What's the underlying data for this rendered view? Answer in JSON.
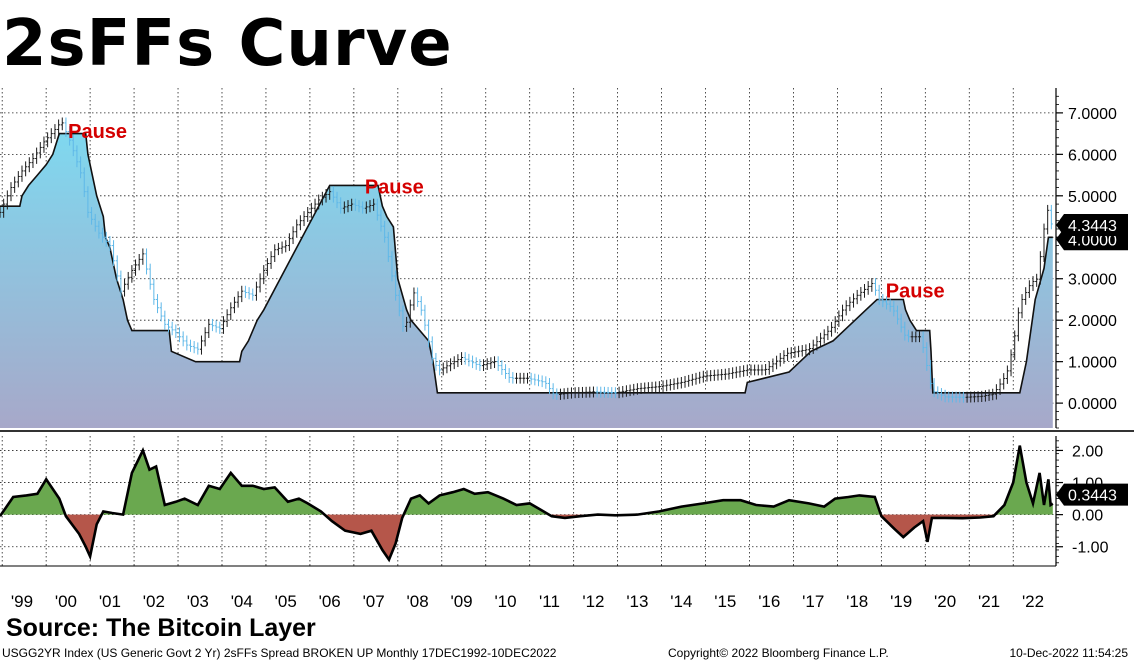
{
  "title": "2sFFs Curve",
  "source": "Source: The Bitcoin Layer",
  "footer": {
    "left": "USGG2YR Index (US Generic Govt 2 Yr) 2sFFs Spread BROKEN UP  Monthly 17DEC1992-10DEC2022",
    "center": "Copyright© 2022 Bloomberg Finance L.P.",
    "right": "10-Dec-2022 11:54:25"
  },
  "colors": {
    "area_top": "#7fd8ef",
    "area_bottom": "#a7a8c9",
    "positive_fill": "#6aa84f",
    "negative_fill": "#b5564a",
    "candle_dark": "#1a1a1a",
    "candle_light": "#5fb8e8",
    "annotation": "#d40000"
  },
  "chart_data": [
    {
      "type": "area",
      "series_description_printed": "none",
      "y_ticks": [
        "7.0000",
        "6.0000",
        "5.0000",
        "4.0000",
        "3.0000",
        "2.0000",
        "1.0000",
        "0.0000"
      ],
      "ylim": [
        -0.6,
        7.6
      ],
      "x_ticks": [
        "'99",
        "'00",
        "'01",
        "'02",
        "'03",
        "'04",
        "'05",
        "'06",
        "'07",
        "'08",
        "'09",
        "'10",
        "'11",
        "'12",
        "'13",
        "'14",
        "'15",
        "'16",
        "'17",
        "'18",
        "'19",
        "'20",
        "'21",
        "'22"
      ],
      "xlim": [
        1999.0,
        2023.0
      ],
      "last_value_labels": [
        "4.3443",
        "4.0000"
      ],
      "annotations": [
        {
          "text": "Pause",
          "x": 2000.55,
          "y": 6.4
        },
        {
          "text": "Pause",
          "x": 2007.3,
          "y": 5.05
        },
        {
          "text": "Pause",
          "x": 2019.15,
          "y": 2.55
        }
      ],
      "fed_funds": [
        [
          1999.0,
          4.75
        ],
        [
          1999.45,
          4.75
        ],
        [
          1999.5,
          5.0
        ],
        [
          1999.65,
          5.25
        ],
        [
          1999.85,
          5.5
        ],
        [
          2000.05,
          5.75
        ],
        [
          2000.2,
          6.0
        ],
        [
          2000.35,
          6.5
        ],
        [
          2000.95,
          6.5
        ],
        [
          2001.0,
          6.0
        ],
        [
          2001.1,
          5.5
        ],
        [
          2001.2,
          5.0
        ],
        [
          2001.35,
          4.5
        ],
        [
          2001.4,
          4.0
        ],
        [
          2001.5,
          3.75
        ],
        [
          2001.65,
          3.0
        ],
        [
          2001.8,
          2.5
        ],
        [
          2001.9,
          2.0
        ],
        [
          2002.0,
          1.75
        ],
        [
          2002.85,
          1.75
        ],
        [
          2002.9,
          1.25
        ],
        [
          2003.45,
          1.0
        ],
        [
          2004.45,
          1.0
        ],
        [
          2004.5,
          1.25
        ],
        [
          2004.65,
          1.5
        ],
        [
          2004.85,
          2.0
        ],
        [
          2005.0,
          2.25
        ],
        [
          2005.25,
          2.75
        ],
        [
          2005.5,
          3.25
        ],
        [
          2005.75,
          3.75
        ],
        [
          2006.0,
          4.25
        ],
        [
          2006.25,
          4.75
        ],
        [
          2006.5,
          5.25
        ],
        [
          2007.6,
          5.25
        ],
        [
          2007.7,
          4.75
        ],
        [
          2007.8,
          4.5
        ],
        [
          2007.95,
          4.25
        ],
        [
          2008.05,
          3.0
        ],
        [
          2008.25,
          2.25
        ],
        [
          2008.35,
          2.0
        ],
        [
          2008.75,
          1.5
        ],
        [
          2008.85,
          1.0
        ],
        [
          2008.95,
          0.25
        ],
        [
          2015.95,
          0.25
        ],
        [
          2016.0,
          0.5
        ],
        [
          2016.95,
          0.75
        ],
        [
          2017.2,
          1.0
        ],
        [
          2017.45,
          1.25
        ],
        [
          2017.95,
          1.5
        ],
        [
          2018.2,
          1.75
        ],
        [
          2018.45,
          2.0
        ],
        [
          2018.7,
          2.25
        ],
        [
          2018.95,
          2.5
        ],
        [
          2019.55,
          2.5
        ],
        [
          2019.6,
          2.25
        ],
        [
          2019.7,
          2.0
        ],
        [
          2019.85,
          1.75
        ],
        [
          2020.15,
          1.75
        ],
        [
          2020.18,
          1.25
        ],
        [
          2020.22,
          0.25
        ],
        [
          2022.2,
          0.25
        ],
        [
          2022.25,
          0.5
        ],
        [
          2022.35,
          1.0
        ],
        [
          2022.45,
          1.75
        ],
        [
          2022.55,
          2.5
        ],
        [
          2022.75,
          3.25
        ],
        [
          2022.85,
          4.0
        ],
        [
          2022.95,
          4.0
        ]
      ],
      "two_year_yield": [
        [
          1999.0,
          4.6
        ],
        [
          1999.25,
          5.2
        ],
        [
          1999.5,
          5.6
        ],
        [
          1999.75,
          5.9
        ],
        [
          2000.0,
          6.3
        ],
        [
          2000.25,
          6.6
        ],
        [
          2000.4,
          6.8
        ],
        [
          2000.6,
          6.3
        ],
        [
          2000.85,
          5.5
        ],
        [
          2001.0,
          4.6
        ],
        [
          2001.25,
          4.1
        ],
        [
          2001.5,
          3.8
        ],
        [
          2001.75,
          2.7
        ],
        [
          2002.0,
          3.2
        ],
        [
          2002.25,
          3.6
        ],
        [
          2002.5,
          2.5
        ],
        [
          2002.75,
          1.9
        ],
        [
          2003.0,
          1.7
        ],
        [
          2003.25,
          1.4
        ],
        [
          2003.5,
          1.3
        ],
        [
          2003.75,
          1.9
        ],
        [
          2004.0,
          1.8
        ],
        [
          2004.25,
          2.3
        ],
        [
          2004.5,
          2.7
        ],
        [
          2004.75,
          2.6
        ],
        [
          2005.0,
          3.2
        ],
        [
          2005.25,
          3.7
        ],
        [
          2005.5,
          3.8
        ],
        [
          2005.75,
          4.3
        ],
        [
          2006.0,
          4.6
        ],
        [
          2006.25,
          4.9
        ],
        [
          2006.5,
          5.1
        ],
        [
          2006.75,
          4.7
        ],
        [
          2007.0,
          4.8
        ],
        [
          2007.25,
          4.7
        ],
        [
          2007.5,
          4.8
        ],
        [
          2007.75,
          4.0
        ],
        [
          2008.0,
          2.6
        ],
        [
          2008.2,
          1.7
        ],
        [
          2008.4,
          2.7
        ],
        [
          2008.6,
          2.2
        ],
        [
          2008.85,
          1.0
        ],
        [
          2009.0,
          0.8
        ],
        [
          2009.5,
          1.1
        ],
        [
          2009.9,
          0.9
        ],
        [
          2010.25,
          1.0
        ],
        [
          2010.6,
          0.6
        ],
        [
          2011.0,
          0.6
        ],
        [
          2011.4,
          0.5
        ],
        [
          2011.6,
          0.2
        ],
        [
          2012.0,
          0.25
        ],
        [
          2012.5,
          0.27
        ],
        [
          2013.0,
          0.25
        ],
        [
          2013.5,
          0.35
        ],
        [
          2014.0,
          0.4
        ],
        [
          2014.5,
          0.5
        ],
        [
          2015.0,
          0.65
        ],
        [
          2015.5,
          0.7
        ],
        [
          2016.0,
          0.8
        ],
        [
          2016.4,
          0.8
        ],
        [
          2016.9,
          1.2
        ],
        [
          2017.4,
          1.3
        ],
        [
          2017.9,
          1.8
        ],
        [
          2018.2,
          2.3
        ],
        [
          2018.5,
          2.6
        ],
        [
          2018.85,
          2.9
        ],
        [
          2019.0,
          2.5
        ],
        [
          2019.3,
          2.3
        ],
        [
          2019.6,
          1.6
        ],
        [
          2019.95,
          1.6
        ],
        [
          2020.2,
          0.3
        ],
        [
          2020.5,
          0.15
        ],
        [
          2020.9,
          0.14
        ],
        [
          2021.3,
          0.16
        ],
        [
          2021.6,
          0.22
        ],
        [
          2021.9,
          0.7
        ],
        [
          2022.05,
          1.4
        ],
        [
          2022.2,
          2.4
        ],
        [
          2022.45,
          2.9
        ],
        [
          2022.6,
          3.0
        ],
        [
          2022.75,
          4.2
        ],
        [
          2022.82,
          4.75
        ],
        [
          2022.88,
          4.3
        ],
        [
          2022.95,
          4.34
        ]
      ]
    },
    {
      "type": "area",
      "series_description_printed": "none",
      "y_ticks": [
        "2.00",
        "1.00",
        "0.00",
        "-1.00"
      ],
      "ylim": [
        -1.6,
        2.45
      ],
      "last_value_labels": [
        "0.3443"
      ],
      "spread": [
        [
          1999.0,
          -0.05
        ],
        [
          1999.3,
          0.55
        ],
        [
          1999.6,
          0.6
        ],
        [
          1999.85,
          0.65
        ],
        [
          2000.05,
          1.1
        ],
        [
          2000.35,
          0.5
        ],
        [
          2000.5,
          -0.05
        ],
        [
          2000.8,
          -0.6
        ],
        [
          2000.95,
          -1.0
        ],
        [
          2001.05,
          -1.3
        ],
        [
          2001.2,
          -0.3
        ],
        [
          2001.35,
          0.1
        ],
        [
          2001.55,
          0.05
        ],
        [
          2001.8,
          0.0
        ],
        [
          2002.0,
          1.3
        ],
        [
          2002.25,
          2.0
        ],
        [
          2002.4,
          1.4
        ],
        [
          2002.55,
          1.5
        ],
        [
          2002.75,
          0.3
        ],
        [
          2003.0,
          0.4
        ],
        [
          2003.2,
          0.5
        ],
        [
          2003.5,
          0.3
        ],
        [
          2003.75,
          0.9
        ],
        [
          2004.0,
          0.8
        ],
        [
          2004.25,
          1.3
        ],
        [
          2004.5,
          0.9
        ],
        [
          2004.75,
          0.9
        ],
        [
          2005.0,
          0.8
        ],
        [
          2005.25,
          0.85
        ],
        [
          2005.55,
          0.4
        ],
        [
          2005.8,
          0.5
        ],
        [
          2006.0,
          0.35
        ],
        [
          2006.3,
          0.1
        ],
        [
          2006.55,
          -0.2
        ],
        [
          2006.85,
          -0.5
        ],
        [
          2007.2,
          -0.6
        ],
        [
          2007.45,
          -0.5
        ],
        [
          2007.7,
          -1.1
        ],
        [
          2007.85,
          -1.4
        ],
        [
          2008.0,
          -0.9
        ],
        [
          2008.15,
          -0.1
        ],
        [
          2008.35,
          0.5
        ],
        [
          2008.55,
          0.6
        ],
        [
          2008.75,
          0.35
        ],
        [
          2009.0,
          0.6
        ],
        [
          2009.3,
          0.7
        ],
        [
          2009.55,
          0.8
        ],
        [
          2009.8,
          0.65
        ],
        [
          2010.1,
          0.7
        ],
        [
          2010.45,
          0.5
        ],
        [
          2010.75,
          0.3
        ],
        [
          2011.05,
          0.35
        ],
        [
          2011.3,
          0.15
        ],
        [
          2011.55,
          -0.05
        ],
        [
          2011.85,
          -0.1
        ],
        [
          2012.2,
          -0.05
        ],
        [
          2012.6,
          0.0
        ],
        [
          2013.0,
          -0.02
        ],
        [
          2013.5,
          0.0
        ],
        [
          2014.0,
          0.1
        ],
        [
          2014.5,
          0.25
        ],
        [
          2015.0,
          0.35
        ],
        [
          2015.45,
          0.45
        ],
        [
          2015.85,
          0.45
        ],
        [
          2016.2,
          0.3
        ],
        [
          2016.6,
          0.25
        ],
        [
          2016.95,
          0.45
        ],
        [
          2017.4,
          0.35
        ],
        [
          2017.75,
          0.25
        ],
        [
          2018.0,
          0.5
        ],
        [
          2018.3,
          0.55
        ],
        [
          2018.55,
          0.6
        ],
        [
          2018.9,
          0.55
        ],
        [
          2019.05,
          -0.05
        ],
        [
          2019.35,
          -0.45
        ],
        [
          2019.55,
          -0.7
        ],
        [
          2019.8,
          -0.4
        ],
        [
          2020.0,
          -0.2
        ],
        [
          2020.1,
          -0.85
        ],
        [
          2020.2,
          -0.1
        ],
        [
          2020.5,
          -0.1
        ],
        [
          2020.9,
          -0.11
        ],
        [
          2021.3,
          -0.09
        ],
        [
          2021.6,
          -0.05
        ],
        [
          2021.85,
          0.3
        ],
        [
          2022.05,
          1.0
        ],
        [
          2022.2,
          2.15
        ],
        [
          2022.35,
          1.0
        ],
        [
          2022.5,
          0.35
        ],
        [
          2022.65,
          1.3
        ],
        [
          2022.75,
          0.3
        ],
        [
          2022.85,
          1.1
        ],
        [
          2022.9,
          0.3
        ],
        [
          2022.95,
          0.3443
        ]
      ]
    }
  ]
}
